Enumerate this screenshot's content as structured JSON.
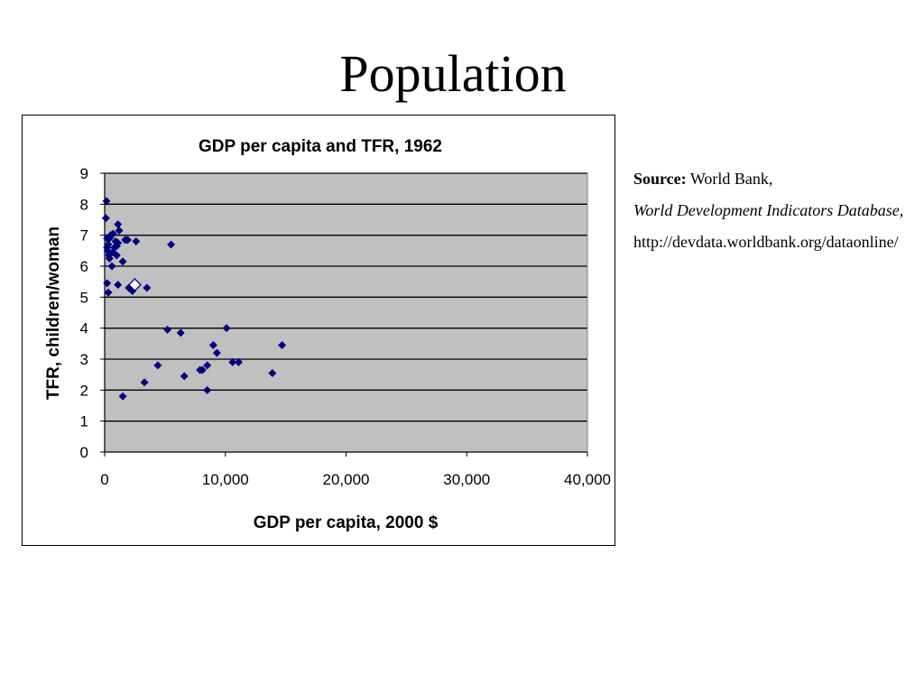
{
  "slide": {
    "title": "Population"
  },
  "source": {
    "label": "Source:",
    "org": "World Bank,",
    "database": "World Development Indicators Database,",
    "url": "http://devdata.worldbank.org/dataonline/"
  },
  "colors": {
    "plot_bg": "#c0c0c0",
    "point": "#000080",
    "highlight_fill": "#ffffff"
  },
  "chart_data": {
    "type": "scatter",
    "title": "GDP per capita and TFR, 1962",
    "xlabel": "GDP per capita, 2000 $",
    "ylabel": "TFR, children/woman",
    "xlim": [
      0,
      40000
    ],
    "ylim": [
      0,
      9
    ],
    "xticks": [
      "0",
      "10,000",
      "20,000",
      "30,000",
      "40,000"
    ],
    "yticks": [
      "0",
      "1",
      "2",
      "3",
      "4",
      "5",
      "6",
      "7",
      "8",
      "9"
    ],
    "grid": "horizontal",
    "legend": "none",
    "series": [
      {
        "points": [
          [
            150,
            8.1
          ],
          [
            100,
            7.55
          ],
          [
            200,
            6.9
          ],
          [
            300,
            6.7
          ],
          [
            250,
            6.5
          ],
          [
            350,
            6.35
          ],
          [
            200,
            6.6
          ],
          [
            500,
            7.0
          ],
          [
            400,
            6.9
          ],
          [
            700,
            7.05
          ],
          [
            1100,
            7.35
          ],
          [
            1200,
            7.15
          ],
          [
            900,
            6.8
          ],
          [
            1000,
            6.65
          ],
          [
            1100,
            6.75
          ],
          [
            800,
            6.6
          ],
          [
            1700,
            6.85
          ],
          [
            1900,
            6.85
          ],
          [
            2600,
            6.8
          ],
          [
            5500,
            6.7
          ],
          [
            600,
            6.0
          ],
          [
            700,
            6.45
          ],
          [
            400,
            6.25
          ],
          [
            1000,
            6.35
          ],
          [
            1500,
            6.15
          ],
          [
            200,
            5.45
          ],
          [
            300,
            5.15
          ],
          [
            1100,
            5.4
          ],
          [
            2000,
            5.3
          ],
          [
            2300,
            5.2
          ],
          [
            3500,
            5.3
          ],
          [
            5200,
            3.95
          ],
          [
            6300,
            3.85
          ],
          [
            10100,
            4.0
          ],
          [
            9000,
            3.45
          ],
          [
            9300,
            3.2
          ],
          [
            14700,
            3.45
          ],
          [
            10600,
            2.9
          ],
          [
            11100,
            2.9
          ],
          [
            13900,
            2.55
          ],
          [
            8500,
            2.8
          ],
          [
            8100,
            2.65
          ],
          [
            7900,
            2.65
          ],
          [
            4400,
            2.8
          ],
          [
            6600,
            2.45
          ],
          [
            3300,
            2.25
          ],
          [
            1500,
            1.8
          ],
          [
            8500,
            2.0
          ]
        ]
      }
    ],
    "highlight": [
      2500,
      5.4
    ]
  }
}
